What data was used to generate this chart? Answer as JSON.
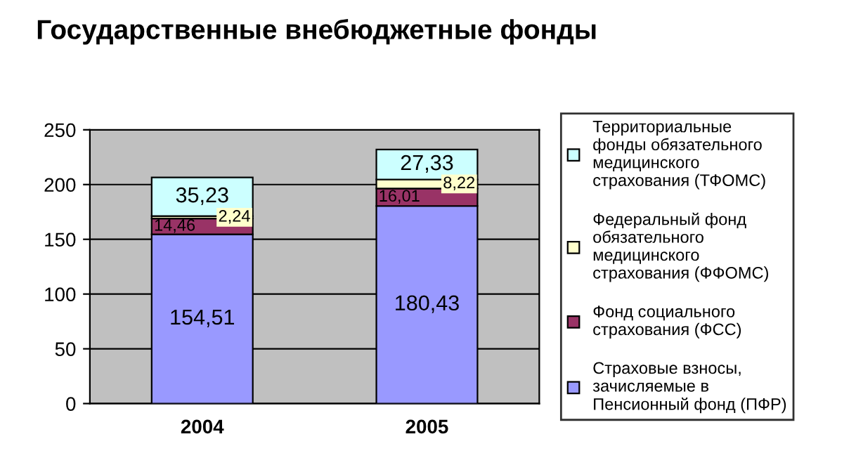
{
  "chart_data": {
    "type": "bar",
    "stacked": true,
    "title": "Государственные внебюджетные фонды",
    "categories": [
      "2004",
      "2005"
    ],
    "series": [
      {
        "name": "Страховые взносы,\nзачисляемые в\nПенсионный фонд (ПФР)",
        "color": "#9999ff",
        "values": [
          154.51,
          180.43
        ],
        "value_labels": [
          "154,51",
          "180,43"
        ]
      },
      {
        "name": "Фонд социального\nстрахования (ФСС)",
        "color": "#993366",
        "values": [
          14.46,
          16.01
        ],
        "value_labels": [
          "14,46",
          "16,01"
        ]
      },
      {
        "name": "Федеральный фонд\nобязательного\nмедицинского\nстрахования (ФФОМС)",
        "color": "#ffffcc",
        "values": [
          2.24,
          8.22
        ],
        "value_labels": [
          "2,24",
          "8,22"
        ]
      },
      {
        "name": "Территориальные\nфонды обязательного\nмедицинского\nстрахования (ТФОМС)",
        "color": "#ccffff",
        "values": [
          35.23,
          27.33
        ],
        "value_labels": [
          "35,23",
          "27,33"
        ]
      }
    ],
    "ylim": [
      0,
      250
    ],
    "yticks": [
      0,
      50,
      100,
      150,
      200,
      250
    ],
    "grid": "y",
    "legend": "right"
  }
}
